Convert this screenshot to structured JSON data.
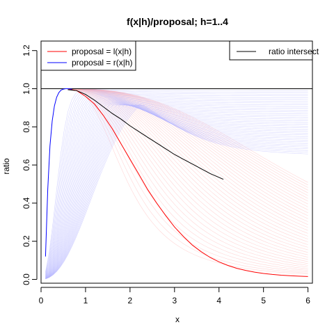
{
  "chart_data": {
    "type": "line",
    "title": "f(x|h)/proposal; h=1..4",
    "xlabel": "x",
    "ylabel": "ratio",
    "xlim": [
      0,
      6.1
    ],
    "ylim": [
      -0.02,
      1.25
    ],
    "xticks": [
      0,
      1,
      2,
      3,
      4,
      5,
      6
    ],
    "yticks": [
      0.0,
      0.2,
      0.4,
      0.6,
      0.8,
      1.0,
      1.2
    ],
    "xtick_labels": [
      "0",
      "1",
      "2",
      "3",
      "4",
      "5",
      "6"
    ],
    "ytick_labels": [
      "0.0",
      "0.2",
      "0.4",
      "0.6",
      "0.8",
      "1.0",
      "1.2"
    ],
    "grid": false,
    "reference_line": {
      "y": 1.0,
      "color": "#000000"
    },
    "colors": {
      "red": "#ff0000",
      "blue": "#0000ff",
      "black": "#000000",
      "faint_red": "#ffb4b4",
      "faint_blue": "#b4b4ff"
    },
    "legend_left": {
      "placement": "top-left",
      "entries": [
        {
          "label": "proposal = l(x|h)",
          "color": "#ff0000"
        },
        {
          "label": "proposal = r(x|h)",
          "color": "#0000ff"
        }
      ]
    },
    "legend_right": {
      "placement": "top-right",
      "entries": [
        {
          "label": "ratio intersect",
          "color": "#000000"
        }
      ]
    },
    "series": [
      {
        "color": "#ff0000",
        "x": [
          0.6,
          0.8,
          1.0,
          1.2,
          1.4,
          1.6,
          1.8,
          2.0,
          2.2,
          2.4,
          2.6,
          2.8,
          3.0,
          3.2,
          3.4,
          3.6,
          3.8,
          4.0,
          4.2,
          4.4,
          4.6,
          4.8,
          5.0,
          5.2,
          5.4,
          5.6,
          5.8,
          6.0
        ],
        "y": [
          1.0,
          0.99,
          0.96,
          0.92,
          0.86,
          0.79,
          0.71,
          0.63,
          0.55,
          0.47,
          0.4,
          0.335,
          0.275,
          0.225,
          0.18,
          0.145,
          0.115,
          0.092,
          0.073,
          0.058,
          0.047,
          0.038,
          0.031,
          0.026,
          0.022,
          0.019,
          0.017,
          0.015
        ]
      },
      {
        "color": "#0000ff",
        "x": [
          0.1,
          0.15,
          0.2,
          0.25,
          0.3,
          0.35,
          0.4,
          0.45,
          0.5,
          0.55,
          0.6,
          0.65,
          0.7
        ],
        "y": [
          0.12,
          0.47,
          0.7,
          0.83,
          0.91,
          0.955,
          0.98,
          0.993,
          0.998,
          1.0,
          1.0,
          0.999,
          0.997
        ]
      },
      {
        "color": "#000000",
        "x": [
          0.6,
          0.8,
          1.0,
          1.2,
          1.4,
          1.6,
          1.8,
          2.0,
          2.2,
          2.4,
          2.6,
          2.8,
          3.0,
          3.2,
          3.4,
          3.6,
          3.8,
          4.0,
          4.1
        ],
        "y": [
          0.995,
          0.99,
          0.97,
          0.94,
          0.905,
          0.87,
          0.84,
          0.805,
          0.775,
          0.745,
          0.715,
          0.685,
          0.655,
          0.63,
          0.605,
          0.58,
          0.555,
          0.535,
          0.525
        ]
      }
    ]
  }
}
